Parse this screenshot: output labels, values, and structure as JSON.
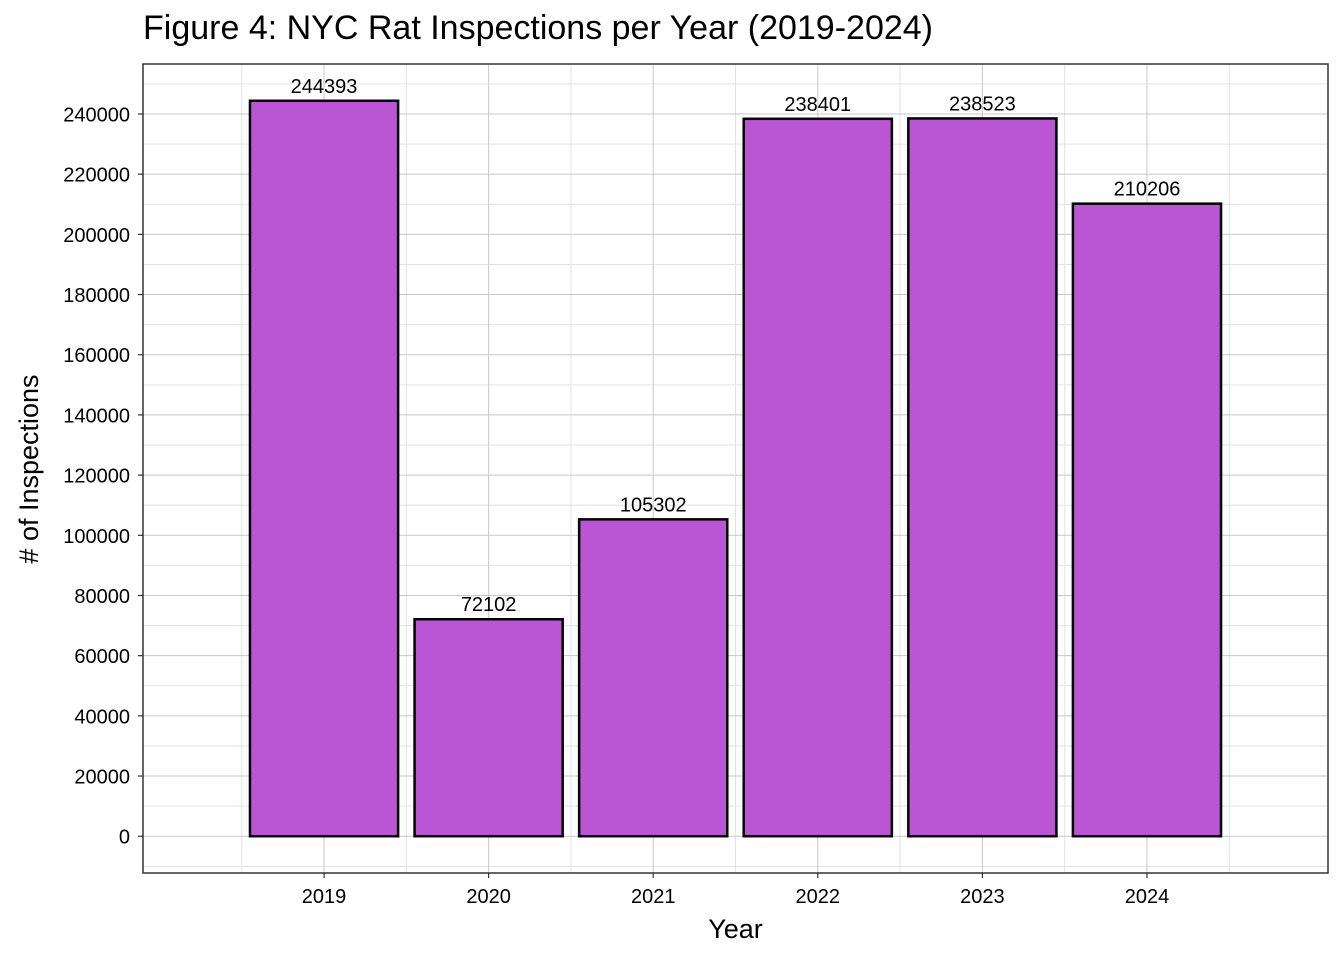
{
  "chart_data": {
    "type": "bar",
    "title": "Figure 4: NYC Rat Inspections per Year (2019-2024)",
    "xlabel": "Year",
    "ylabel": "# of Inspections",
    "categories": [
      "2019",
      "2020",
      "2021",
      "2022",
      "2023",
      "2024"
    ],
    "values": [
      244393,
      72102,
      105302,
      238401,
      238523,
      210206
    ],
    "value_labels": [
      "244393",
      "72102",
      "105302",
      "238401",
      "238523",
      "210206"
    ],
    "yticks": [
      0,
      20000,
      40000,
      60000,
      80000,
      100000,
      120000,
      140000,
      160000,
      180000,
      200000,
      220000,
      240000
    ],
    "ytick_labels": [
      "0",
      "20000",
      "40000",
      "60000",
      "80000",
      "100000",
      "120000",
      "140000",
      "160000",
      "180000",
      "200000",
      "220000",
      "240000"
    ],
    "ylim": [
      -12220,
      256613
    ],
    "grid": true,
    "legend": "none",
    "bar_color": "#BA55D3",
    "bar_edge_color": "#000000"
  }
}
